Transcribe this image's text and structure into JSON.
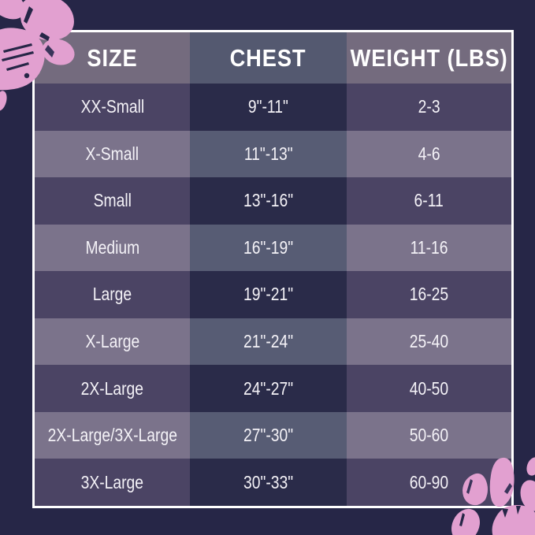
{
  "title": "Pet apparel size chart",
  "colors": {
    "background_navy": "#262647",
    "table_border_white": "#ffffff",
    "header_side_bg": "#746b7e",
    "header_mid_bg": "#545970",
    "row_light_side_bg": "#7b738b",
    "row_light_mid_bg": "#575c74",
    "row_dark_side_bg": "#4b4464",
    "row_dark_mid_bg": "#2a2b49",
    "text_white": "#ffffff",
    "paw_pink": "#e2a0d0"
  },
  "decor": {
    "top_left": "paw-print-icon",
    "bottom_right": "paw-print-icon"
  },
  "chart_data": {
    "type": "table",
    "title": "Size / Chest / Weight chart",
    "columns": [
      "SIZE",
      "CHEST",
      "WEIGHT (LBS)"
    ],
    "rows": [
      [
        "XX-Small",
        "9\"-11\"",
        "2-3"
      ],
      [
        "X-Small",
        "11\"-13\"",
        "4-6"
      ],
      [
        "Small",
        "13\"-16\"",
        "6-11"
      ],
      [
        "Medium",
        "16\"-19\"",
        "11-16"
      ],
      [
        "Large",
        "19\"-21\"",
        "16-25"
      ],
      [
        "X-Large",
        "21\"-24\"",
        "25-40"
      ],
      [
        "2X-Large",
        "24\"-27\"",
        "40-50"
      ],
      [
        "2X-Large/3X-Large",
        "27\"-30\"",
        "50-60"
      ],
      [
        "3X-Large",
        "30\"-33\"",
        "60-90"
      ]
    ]
  }
}
